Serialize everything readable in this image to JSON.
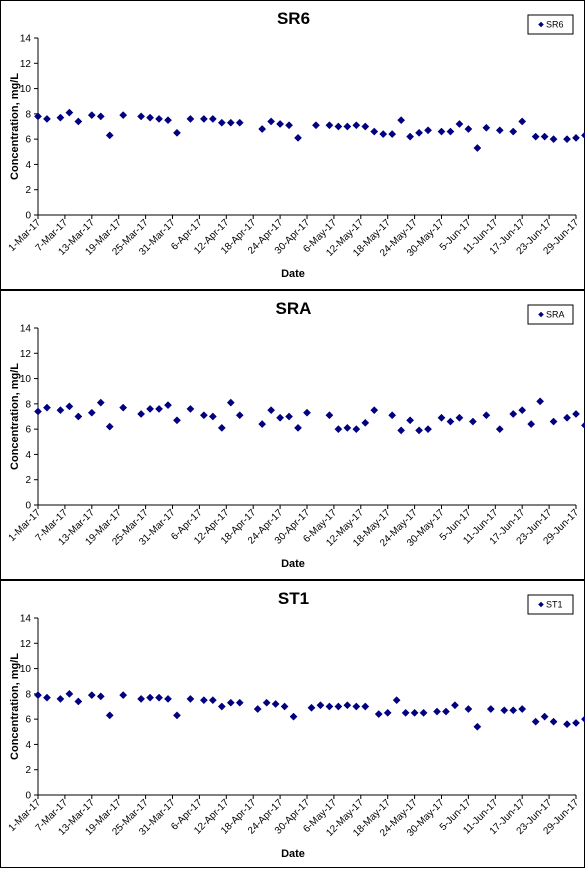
{
  "chart_data": [
    {
      "type": "scatter",
      "title": "SR6",
      "xlabel": "Date",
      "ylabel": "Concentration, mg/L",
      "ylim": [
        0,
        14
      ],
      "yticks": [
        "0",
        "2",
        "4",
        "6",
        "8",
        "10",
        "12",
        "14"
      ],
      "xlim": [
        "2017-03-01",
        "2017-06-29"
      ],
      "xticks": [
        "1-Mar-17",
        "7-Mar-17",
        "13-Mar-17",
        "19-Mar-17",
        "25-Mar-17",
        "31-Mar-17",
        "6-Apr-17",
        "12-Apr-17",
        "18-Apr-17",
        "24-Apr-17",
        "30-Apr-17",
        "6-May-17",
        "12-May-17",
        "18-May-17",
        "24-May-17",
        "30-May-17",
        "5-Jun-17",
        "11-Jun-17",
        "17-Jun-17",
        "23-Jun-17",
        "29-Jun-17"
      ],
      "marker_color": "#000080",
      "legend_position": "top-right",
      "series": [
        {
          "name": "SR6",
          "x": [
            "2017-03-01",
            "2017-03-03",
            "2017-03-06",
            "2017-03-08",
            "2017-03-10",
            "2017-03-13",
            "2017-03-15",
            "2017-03-17",
            "2017-03-20",
            "2017-03-24",
            "2017-03-26",
            "2017-03-28",
            "2017-03-30",
            "2017-04-01",
            "2017-04-04",
            "2017-04-07",
            "2017-04-09",
            "2017-04-11",
            "2017-04-13",
            "2017-04-15",
            "2017-04-20",
            "2017-04-22",
            "2017-04-24",
            "2017-04-26",
            "2017-04-28",
            "2017-05-02",
            "2017-05-05",
            "2017-05-07",
            "2017-05-09",
            "2017-05-11",
            "2017-05-13",
            "2017-05-15",
            "2017-05-17",
            "2017-05-19",
            "2017-05-21",
            "2017-05-23",
            "2017-05-25",
            "2017-05-27",
            "2017-05-30",
            "2017-06-01",
            "2017-06-03",
            "2017-06-05",
            "2017-06-07",
            "2017-06-09",
            "2017-06-12",
            "2017-06-15",
            "2017-06-17",
            "2017-06-20",
            "2017-06-22",
            "2017-06-24",
            "2017-06-27",
            "2017-06-29",
            "2017-07-01"
          ],
          "y": [
            7.8,
            7.6,
            7.7,
            8.1,
            7.4,
            7.9,
            7.8,
            6.3,
            7.9,
            7.8,
            7.7,
            7.6,
            7.5,
            6.5,
            7.6,
            7.6,
            7.6,
            7.3,
            7.3,
            7.3,
            6.8,
            7.4,
            7.2,
            7.1,
            6.1,
            7.1,
            7.1,
            7.0,
            7.0,
            7.1,
            7.0,
            6.6,
            6.4,
            6.4,
            7.5,
            6.2,
            6.5,
            6.7,
            6.6,
            6.6,
            7.2,
            6.8,
            5.3,
            6.9,
            6.7,
            6.6,
            7.4,
            6.2,
            6.2,
            6.0,
            6.0,
            6.1,
            6.3
          ]
        }
      ]
    },
    {
      "type": "scatter",
      "title": "SRA",
      "xlabel": "Date",
      "ylabel": "Concentration, mg/L",
      "ylim": [
        0,
        14
      ],
      "yticks": [
        "0",
        "2",
        "4",
        "6",
        "8",
        "10",
        "12",
        "14"
      ],
      "xlim": [
        "2017-03-01",
        "2017-06-29"
      ],
      "xticks": [
        "1-Mar-17",
        "7-Mar-17",
        "13-Mar-17",
        "19-Mar-17",
        "25-Mar-17",
        "31-Mar-17",
        "6-Apr-17",
        "12-Apr-17",
        "18-Apr-17",
        "24-Apr-17",
        "30-Apr-17",
        "6-May-17",
        "12-May-17",
        "18-May-17",
        "24-May-17",
        "30-May-17",
        "5-Jun-17",
        "11-Jun-17",
        "17-Jun-17",
        "23-Jun-17",
        "29-Jun-17"
      ],
      "marker_color": "#000080",
      "legend_position": "top-right",
      "series": [
        {
          "name": "SRA",
          "x": [
            "2017-03-01",
            "2017-03-03",
            "2017-03-06",
            "2017-03-08",
            "2017-03-10",
            "2017-03-13",
            "2017-03-15",
            "2017-03-17",
            "2017-03-20",
            "2017-03-24",
            "2017-03-26",
            "2017-03-28",
            "2017-03-30",
            "2017-04-01",
            "2017-04-04",
            "2017-04-07",
            "2017-04-09",
            "2017-04-11",
            "2017-04-13",
            "2017-04-15",
            "2017-04-20",
            "2017-04-22",
            "2017-04-24",
            "2017-04-26",
            "2017-04-28",
            "2017-04-30",
            "2017-05-05",
            "2017-05-07",
            "2017-05-09",
            "2017-05-11",
            "2017-05-13",
            "2017-05-15",
            "2017-05-19",
            "2017-05-21",
            "2017-05-23",
            "2017-05-25",
            "2017-05-27",
            "2017-05-30",
            "2017-06-01",
            "2017-06-03",
            "2017-06-06",
            "2017-06-09",
            "2017-06-12",
            "2017-06-15",
            "2017-06-17",
            "2017-06-19",
            "2017-06-21",
            "2017-06-24",
            "2017-06-27",
            "2017-06-29",
            "2017-07-01"
          ],
          "y": [
            7.4,
            7.7,
            7.5,
            7.8,
            7.0,
            7.3,
            8.1,
            6.2,
            7.7,
            7.2,
            7.6,
            7.6,
            7.9,
            6.7,
            7.6,
            7.1,
            7.0,
            6.1,
            8.1,
            7.1,
            6.4,
            7.5,
            6.9,
            7.0,
            6.1,
            7.3,
            7.1,
            6.0,
            6.1,
            6.0,
            6.5,
            7.5,
            7.1,
            5.9,
            6.7,
            5.9,
            6.0,
            6.9,
            6.6,
            6.9,
            6.6,
            7.1,
            6.0,
            7.2,
            7.5,
            6.4,
            8.2,
            6.6,
            6.9,
            7.2,
            6.3
          ]
        }
      ]
    },
    {
      "type": "scatter",
      "title": "ST1",
      "xlabel": "Date",
      "ylabel": "Concentration, mg/L",
      "ylim": [
        0,
        14
      ],
      "yticks": [
        "0",
        "2",
        "4",
        "6",
        "8",
        "10",
        "12",
        "14"
      ],
      "xlim": [
        "2017-03-01",
        "2017-06-29"
      ],
      "xticks": [
        "1-Mar-17",
        "7-Mar-17",
        "13-Mar-17",
        "19-Mar-17",
        "25-Mar-17",
        "31-Mar-17",
        "6-Apr-17",
        "12-Apr-17",
        "18-Apr-17",
        "24-Apr-17",
        "30-Apr-17",
        "6-May-17",
        "12-May-17",
        "18-May-17",
        "24-May-17",
        "30-May-17",
        "5-Jun-17",
        "11-Jun-17",
        "17-Jun-17",
        "23-Jun-17",
        "29-Jun-17"
      ],
      "marker_color": "#000080",
      "legend_position": "top-right",
      "series": [
        {
          "name": "ST1",
          "x": [
            "2017-03-01",
            "2017-03-03",
            "2017-03-06",
            "2017-03-08",
            "2017-03-10",
            "2017-03-13",
            "2017-03-15",
            "2017-03-17",
            "2017-03-20",
            "2017-03-24",
            "2017-03-26",
            "2017-03-28",
            "2017-03-30",
            "2017-04-01",
            "2017-04-04",
            "2017-04-07",
            "2017-04-09",
            "2017-04-11",
            "2017-04-13",
            "2017-04-15",
            "2017-04-19",
            "2017-04-21",
            "2017-04-23",
            "2017-04-25",
            "2017-04-27",
            "2017-05-01",
            "2017-05-03",
            "2017-05-05",
            "2017-05-07",
            "2017-05-09",
            "2017-05-11",
            "2017-05-13",
            "2017-05-16",
            "2017-05-18",
            "2017-05-20",
            "2017-05-22",
            "2017-05-24",
            "2017-05-26",
            "2017-05-29",
            "2017-05-31",
            "2017-06-02",
            "2017-06-05",
            "2017-06-07",
            "2017-06-10",
            "2017-06-13",
            "2017-06-15",
            "2017-06-17",
            "2017-06-20",
            "2017-06-22",
            "2017-06-24",
            "2017-06-27",
            "2017-06-29",
            "2017-07-01"
          ],
          "y": [
            7.9,
            7.7,
            7.6,
            8.0,
            7.4,
            7.9,
            7.8,
            6.3,
            7.9,
            7.6,
            7.7,
            7.7,
            7.6,
            6.3,
            7.6,
            7.5,
            7.5,
            7.0,
            7.3,
            7.3,
            6.8,
            7.3,
            7.2,
            7.0,
            6.2,
            6.9,
            7.1,
            7.0,
            7.0,
            7.1,
            7.0,
            7.0,
            6.4,
            6.5,
            7.5,
            6.5,
            6.5,
            6.5,
            6.6,
            6.6,
            7.1,
            6.8,
            5.4,
            6.8,
            6.7,
            6.7,
            6.8,
            5.8,
            6.2,
            5.8,
            5.6,
            5.7,
            6.0
          ]
        }
      ]
    }
  ]
}
